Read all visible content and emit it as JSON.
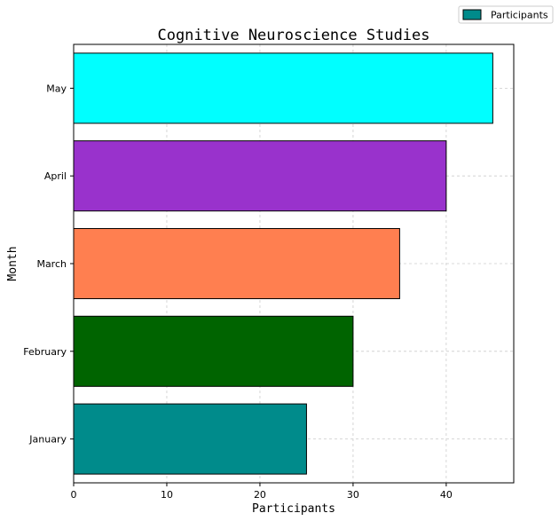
{
  "chart_data": {
    "type": "bar",
    "orientation": "horizontal",
    "title": "Cognitive Neuroscience Studies",
    "xlabel": "Participants",
    "ylabel": "Month",
    "categories": [
      "January",
      "February",
      "March",
      "April",
      "May"
    ],
    "series": [
      {
        "name": "Participants",
        "values": [
          25,
          30,
          35,
          40,
          45
        ],
        "colors": [
          "#008b8b",
          "#006400",
          "#ff7f50",
          "#9932cc",
          "#00ffff"
        ],
        "legend_color": "#008b8b"
      }
    ],
    "xlim": [
      0,
      47.25
    ],
    "xticks": [
      0,
      10,
      20,
      30,
      40
    ],
    "grid": true,
    "legend_position": "top-right"
  }
}
